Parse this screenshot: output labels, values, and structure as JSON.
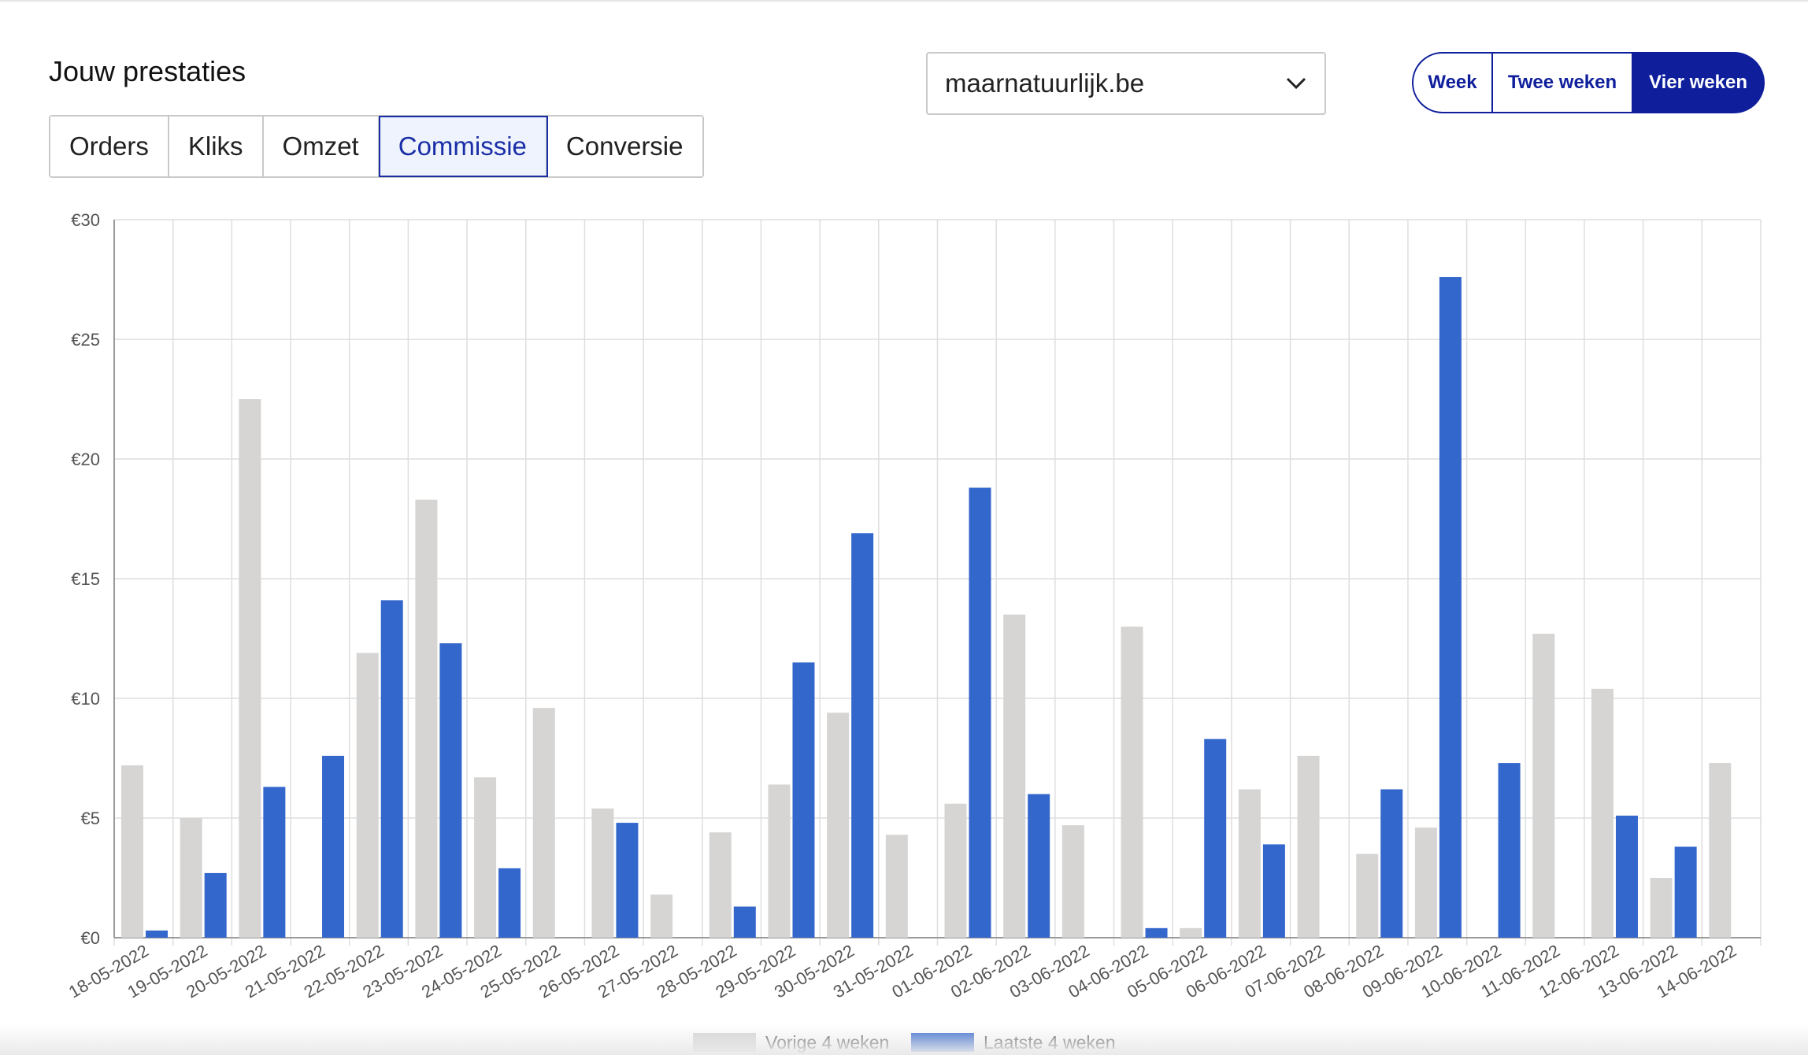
{
  "header": {
    "title": "Jouw prestaties"
  },
  "tabs": [
    {
      "label": "Orders",
      "active": false
    },
    {
      "label": "Kliks",
      "active": false
    },
    {
      "label": "Omzet",
      "active": false
    },
    {
      "label": "Commissie",
      "active": true
    },
    {
      "label": "Conversie",
      "active": false
    }
  ],
  "site_select": {
    "value": "maarnatuurlijk.be",
    "icon": "chevron-down-icon"
  },
  "period": {
    "week": "Week",
    "two_weeks": "Twee weken",
    "four_weeks": "Vier weken",
    "selected": "Vier weken"
  },
  "colors": {
    "previous": "#d6d5d4",
    "latest": "#3367cc",
    "accent": "#0f1f9c"
  },
  "chart_data": {
    "type": "bar",
    "ylim": [
      0,
      30
    ],
    "yticks": [
      "€0",
      "€5",
      "€10",
      "€15",
      "€20",
      "€25",
      "€30"
    ],
    "grid": true,
    "legend_position": "bottom",
    "categories": [
      "18-05-2022",
      "19-05-2022",
      "20-05-2022",
      "21-05-2022",
      "22-05-2022",
      "23-05-2022",
      "24-05-2022",
      "25-05-2022",
      "26-05-2022",
      "27-05-2022",
      "28-05-2022",
      "29-05-2022",
      "30-05-2022",
      "31-05-2022",
      "01-06-2022",
      "02-06-2022",
      "03-06-2022",
      "04-06-2022",
      "05-06-2022",
      "06-06-2022",
      "07-06-2022",
      "08-06-2022",
      "09-06-2022",
      "10-06-2022",
      "11-06-2022",
      "12-06-2022",
      "13-06-2022",
      "14-06-2022"
    ],
    "series": [
      {
        "name": "Vorige 4 weken",
        "color": "#d6d5d4",
        "values": [
          7.2,
          5.0,
          22.5,
          0,
          11.9,
          18.3,
          6.7,
          9.6,
          5.4,
          1.8,
          4.4,
          6.4,
          9.4,
          4.3,
          5.6,
          13.5,
          4.7,
          13.0,
          0.4,
          6.2,
          7.6,
          3.5,
          4.6,
          0,
          12.7,
          10.4,
          2.5,
          7.3
        ]
      },
      {
        "name": "Laatste 4 weken",
        "color": "#3367cc",
        "values": [
          0.3,
          2.7,
          6.3,
          7.6,
          14.1,
          12.3,
          2.9,
          0,
          4.8,
          0,
          1.3,
          11.5,
          16.9,
          0,
          18.8,
          6.0,
          0,
          0.4,
          8.3,
          3.9,
          0,
          6.2,
          27.6,
          7.3,
          0,
          5.1,
          3.8,
          0
        ]
      }
    ]
  }
}
